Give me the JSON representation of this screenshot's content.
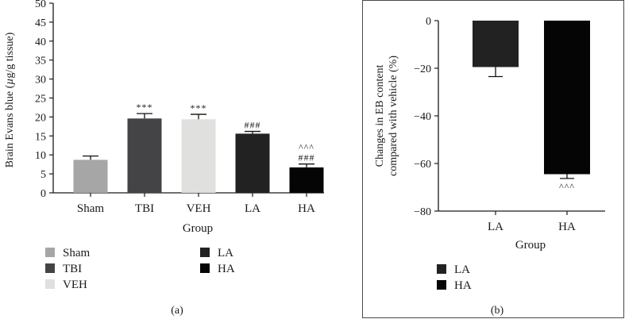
{
  "chart_data": [
    {
      "type": "bar",
      "panel_label": "(a)",
      "ylabel": "Brain Evans blue (µg/g tissue)",
      "xlabel": "Group",
      "ylim": [
        0,
        50
      ],
      "yticks": [
        0,
        5,
        10,
        15,
        20,
        25,
        30,
        35,
        40,
        45,
        50
      ],
      "categories": [
        "Sham",
        "TBI",
        "VEH",
        "LA",
        "HA"
      ],
      "values": [
        8.7,
        19.6,
        19.4,
        15.6,
        6.7
      ],
      "errors": [
        1.0,
        1.3,
        1.3,
        0.6,
        0.9
      ],
      "colors": [
        "#a6a6a6",
        "#444446",
        "#e0e0df",
        "#222222",
        "#050505"
      ],
      "annotations": [
        [],
        [
          "***"
        ],
        [
          "***"
        ],
        [
          "###"
        ],
        [
          "###",
          "^^^"
        ]
      ],
      "legend": [
        {
          "label": "Sham",
          "color": "#a6a6a6"
        },
        {
          "label": "TBI",
          "color": "#444446"
        },
        {
          "label": "VEH",
          "color": "#e0e0df"
        },
        {
          "label": "LA",
          "color": "#222222"
        },
        {
          "label": "HA",
          "color": "#050505"
        }
      ]
    },
    {
      "type": "bar",
      "panel_label": "(b)",
      "ylabel_lines": [
        "Changes in EB content",
        "compared with vehicle (%)"
      ],
      "xlabel": "Group",
      "ylim": [
        -80,
        0
      ],
      "yticks": [
        0,
        -20,
        -40,
        -60,
        -80
      ],
      "categories": [
        "LA",
        "HA"
      ],
      "values": [
        -19.5,
        -64.5
      ],
      "errors": [
        4.0,
        1.8
      ],
      "colors": [
        "#222222",
        "#050505"
      ],
      "annotations": [
        [],
        [
          "^^^"
        ]
      ],
      "legend": [
        {
          "label": "LA",
          "color": "#222222"
        },
        {
          "label": "HA",
          "color": "#050505"
        }
      ]
    }
  ]
}
